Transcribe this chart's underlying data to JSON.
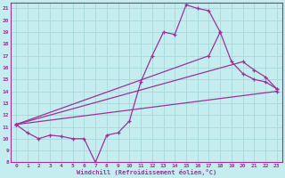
{
  "xlabel": "Windchill (Refroidissement éolien,°C)",
  "bg_color": "#c5ecee",
  "line_color": "#993399",
  "grid_color": "#a8d8da",
  "xlim": [
    -0.5,
    23.5
  ],
  "ylim": [
    8,
    21.5
  ],
  "yticks": [
    8,
    9,
    10,
    11,
    12,
    13,
    14,
    15,
    16,
    17,
    18,
    19,
    20,
    21
  ],
  "xticks": [
    0,
    1,
    2,
    3,
    4,
    5,
    6,
    7,
    8,
    9,
    10,
    11,
    12,
    13,
    14,
    15,
    16,
    17,
    18,
    19,
    20,
    21,
    22,
    23
  ],
  "series": [
    {
      "x": [
        0,
        1,
        2,
        3,
        4,
        5,
        6,
        7,
        8,
        9,
        10,
        11,
        12,
        13,
        14,
        15,
        16,
        17,
        18
      ],
      "y": [
        11.2,
        10.5,
        10.0,
        10.3,
        10.2,
        10.0,
        10.0,
        8.0,
        10.3,
        10.5,
        11.5,
        14.8,
        17.0,
        19.0,
        18.8,
        21.3,
        21.0,
        20.8,
        19.0
      ]
    },
    {
      "x": [
        0,
        17,
        18,
        19,
        20,
        21,
        22,
        23
      ],
      "y": [
        11.2,
        17.0,
        19.0,
        16.5,
        15.5,
        15.0,
        14.8,
        14.2
      ]
    },
    {
      "x": [
        0,
        20,
        21,
        22,
        23
      ],
      "y": [
        11.2,
        16.5,
        15.8,
        15.2,
        14.2
      ]
    },
    {
      "x": [
        0,
        23
      ],
      "y": [
        11.2,
        14.0
      ]
    }
  ]
}
